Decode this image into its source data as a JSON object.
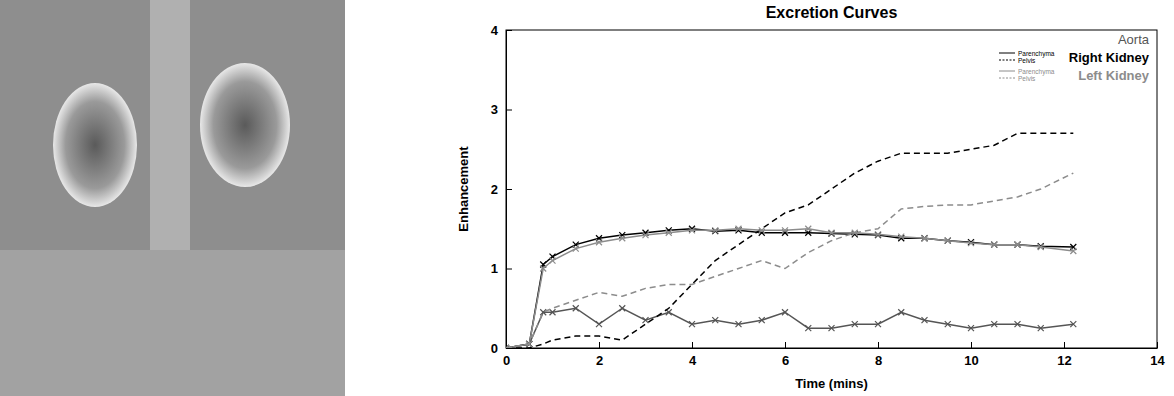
{
  "chart_data": {
    "type": "line",
    "title": "Excretion Curves",
    "x_label": "Time (mins)",
    "y_label": "Enhancement",
    "xlim": [
      0,
      14
    ],
    "xticks": [
      0,
      2,
      4,
      6,
      8,
      10,
      12,
      14
    ],
    "ylim": [
      0,
      4
    ],
    "yticks": [
      0,
      1,
      2,
      3,
      4
    ],
    "grid": false,
    "legend": "upper right",
    "x": [
      0,
      0.5,
      0.8,
      1,
      1.5,
      2,
      2.5,
      3,
      3.5,
      4,
      4.5,
      5,
      5.5,
      6,
      6.5,
      7,
      7.5,
      8,
      8.5,
      9,
      9.5,
      10,
      10.5,
      11,
      11.5,
      12.2
    ],
    "series": [
      {
        "name": "Aorta",
        "color": "#555555",
        "marker": "x",
        "line_style": "solid",
        "values": [
          0,
          0.05,
          0.45,
          0.45,
          0.5,
          0.3,
          0.5,
          0.35,
          0.45,
          0.3,
          0.35,
          0.3,
          0.35,
          0.45,
          0.25,
          0.25,
          0.3,
          0.3,
          0.45,
          0.35,
          0.3,
          0.25,
          0.3,
          0.3,
          0.25,
          0.3
        ]
      },
      {
        "name": "Parenchyma",
        "group": "Right Kidney",
        "color": "#000000",
        "marker": "x",
        "line_style": "solid",
        "values": [
          0,
          0.05,
          1.05,
          1.15,
          1.3,
          1.38,
          1.42,
          1.45,
          1.48,
          1.5,
          1.47,
          1.48,
          1.45,
          1.45,
          1.45,
          1.44,
          1.43,
          1.42,
          1.38,
          1.38,
          1.35,
          1.33,
          1.3,
          1.3,
          1.28,
          1.27
        ]
      },
      {
        "name": "Pelvis",
        "group": "Right Kidney",
        "color": "#000000",
        "marker": "none",
        "line_style": "dashed",
        "values": [
          0,
          0,
          0.05,
          0.1,
          0.15,
          0.15,
          0.1,
          0.3,
          0.5,
          0.8,
          1.1,
          1.3,
          1.5,
          1.7,
          1.8,
          2.0,
          2.2,
          2.35,
          2.45,
          2.45,
          2.45,
          2.5,
          2.55,
          2.7,
          2.7,
          2.7
        ]
      },
      {
        "name": "Parenchyma",
        "group": "Left Kidney",
        "color": "#8c8c8c",
        "marker": "x",
        "line_style": "solid",
        "values": [
          0,
          0.05,
          1.0,
          1.1,
          1.25,
          1.33,
          1.38,
          1.42,
          1.45,
          1.48,
          1.48,
          1.5,
          1.48,
          1.48,
          1.5,
          1.45,
          1.45,
          1.43,
          1.4,
          1.38,
          1.35,
          1.32,
          1.3,
          1.3,
          1.27,
          1.22
        ]
      },
      {
        "name": "Pelvis",
        "group": "Left Kidney",
        "color": "#8c8c8c",
        "marker": "none",
        "line_style": "dashed",
        "values": [
          0,
          0.05,
          0.45,
          0.5,
          0.6,
          0.7,
          0.65,
          0.75,
          0.8,
          0.8,
          0.9,
          1.0,
          1.1,
          1.0,
          1.2,
          1.35,
          1.45,
          1.5,
          1.75,
          1.78,
          1.8,
          1.8,
          1.85,
          1.9,
          2.0,
          2.2
        ]
      }
    ]
  }
}
